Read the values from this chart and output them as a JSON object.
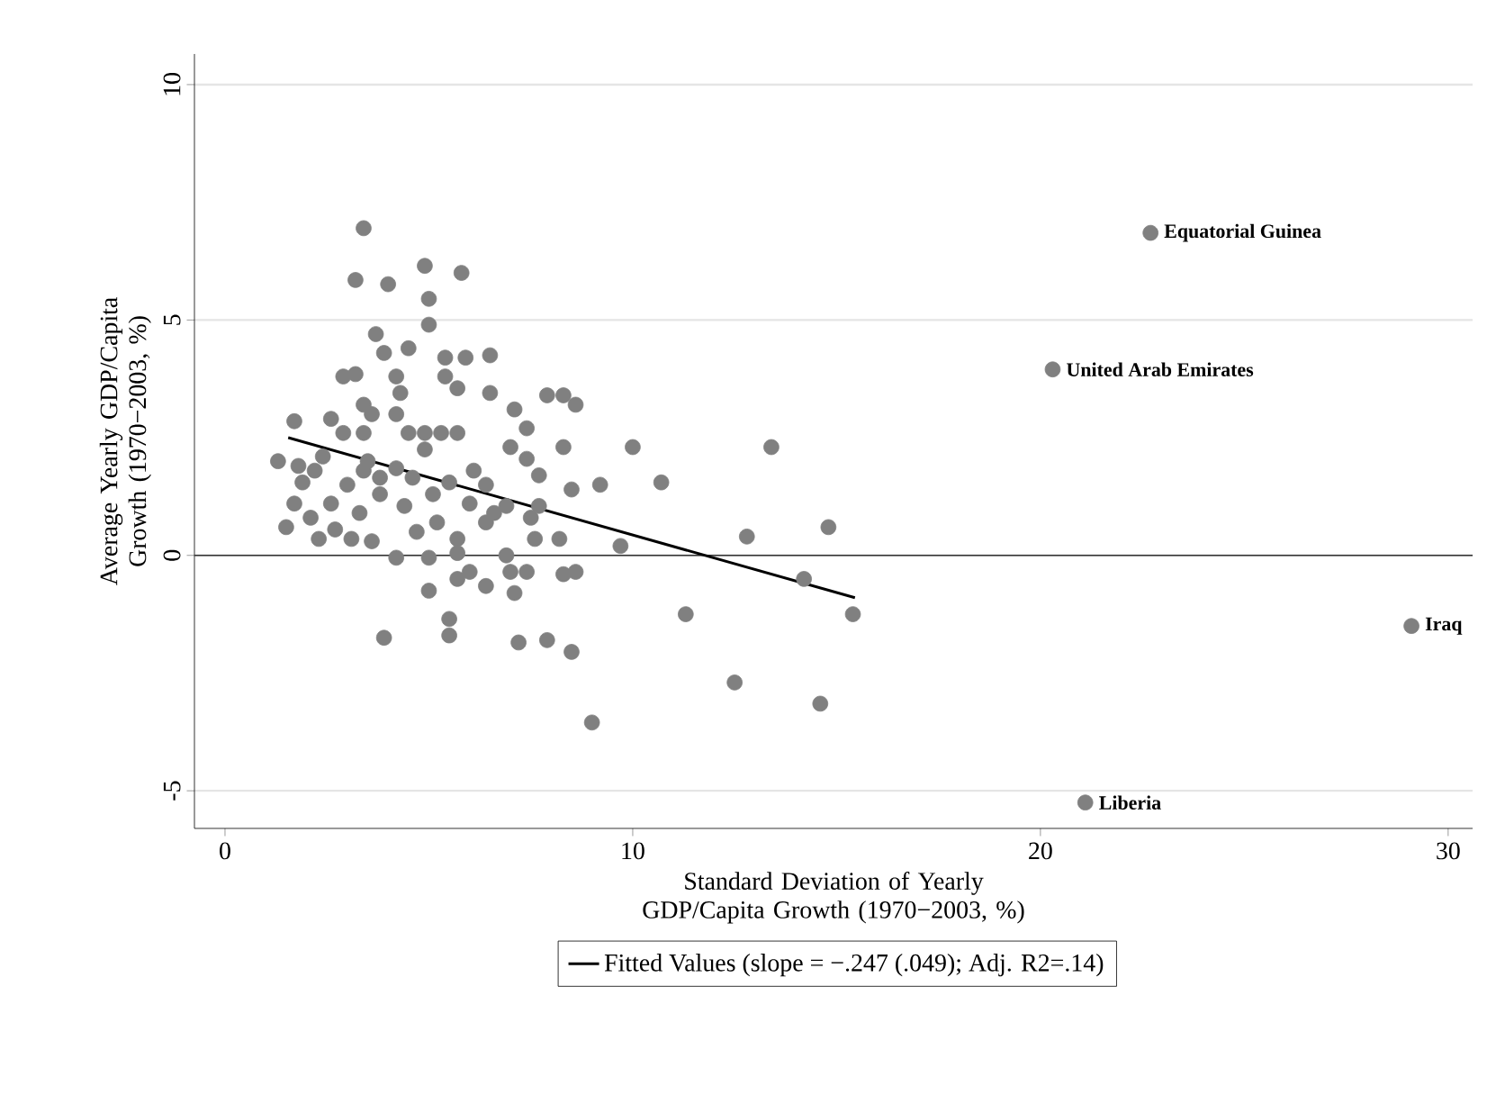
{
  "chart_data": {
    "type": "scatter",
    "xlabel": "Standard Deviation of Yearly GDP/Capita Growth (1970−2003, %)",
    "ylabel": "Average Yearly GDP/Capita Growth (1970−2003, %)",
    "xlim": [
      -0.75,
      30.6
    ],
    "ylim": [
      -5.8,
      10.65
    ],
    "xticks": [
      0,
      10,
      20,
      30
    ],
    "yticks": [
      -5,
      0,
      5,
      10
    ],
    "grid": "y",
    "legend": "bottom",
    "marker": "circle",
    "ref_lines": [
      {
        "axis": "y",
        "value": 0,
        "color": "#333333"
      }
    ],
    "annotations": [
      {
        "text": "Equatorial Guinea",
        "x": 22.7,
        "y": 6.85
      },
      {
        "text": "United Arab Emirates",
        "x": 20.3,
        "y": 3.95
      },
      {
        "text": "Iraq",
        "x": 29.1,
        "y": -1.5
      },
      {
        "text": "Liberia",
        "x": 21.1,
        "y": -5.25
      }
    ],
    "series": [
      {
        "color": "#808080",
        "x": [
          3.4,
          4.9,
          3.2,
          4.0,
          5.8,
          5.0,
          5.0,
          3.7,
          4.5,
          3.9,
          6.5,
          5.4,
          5.9,
          4.2,
          2.9,
          3.2,
          5.4,
          5.7,
          6.5,
          4.3,
          4.2,
          3.4,
          7.1,
          7.4,
          7.9,
          8.3,
          8.6,
          3.4,
          1.7,
          2.6,
          4.9,
          5.3,
          5.7,
          7.0,
          7.4,
          8.3,
          10.0,
          13.4,
          4.5,
          2.4,
          3.5,
          4.9,
          6.1,
          9.2,
          10.7,
          7.7,
          8.5,
          2.2,
          1.8,
          1.3,
          3.3,
          4.4,
          5.2,
          6.0,
          6.9,
          7.7,
          2.6,
          3.0,
          3.8,
          4.6,
          5.5,
          1.9,
          2.1,
          2.7,
          3.6,
          4.7,
          5.7,
          6.4,
          7.6,
          8.2,
          9.7,
          12.8,
          14.8,
          14.2,
          15.4,
          11.3,
          12.5,
          14.6,
          9.0,
          5.0,
          5.7,
          6.0,
          6.4,
          7.0,
          7.4,
          7.1,
          8.3,
          8.6,
          3.9,
          5.5,
          5.5,
          7.2,
          7.9,
          8.5,
          5.0,
          4.2,
          3.1,
          6.9,
          5.7,
          1.7,
          1.5,
          2.3,
          3.4,
          3.8,
          4.2,
          5.1,
          6.4,
          2.9,
          3.6,
          6.6,
          7.5,
          22.7,
          20.3,
          29.1,
          21.1
        ],
        "values": [
          6.95,
          6.15,
          5.85,
          5.76,
          6.0,
          5.45,
          4.9,
          4.7,
          4.4,
          4.3,
          4.25,
          4.2,
          4.2,
          3.8,
          3.8,
          3.85,
          3.8,
          3.55,
          3.45,
          3.45,
          3.0,
          3.2,
          3.1,
          2.7,
          3.4,
          3.4,
          3.2,
          2.6,
          2.85,
          2.9,
          2.6,
          2.6,
          2.6,
          2.3,
          2.05,
          2.3,
          2.3,
          2.3,
          2.6,
          2.1,
          2.0,
          2.25,
          1.8,
          1.5,
          1.55,
          1.7,
          1.4,
          1.8,
          1.9,
          2.0,
          0.9,
          1.05,
          0.7,
          1.1,
          1.05,
          1.05,
          1.1,
          1.5,
          1.65,
          1.65,
          1.55,
          1.55,
          0.8,
          0.55,
          0.3,
          0.5,
          0.35,
          0.7,
          0.35,
          0.35,
          0.2,
          0.4,
          0.6,
          -0.5,
          -1.25,
          -1.25,
          -2.7,
          -3.15,
          -3.55,
          -0.75,
          -0.5,
          -0.35,
          -0.65,
          -0.35,
          -0.35,
          -0.8,
          -0.4,
          -0.35,
          -1.75,
          -1.35,
          -1.7,
          -1.85,
          -1.8,
          -2.05,
          -0.05,
          -0.05,
          0.35,
          0.0,
          0.05,
          1.1,
          0.6,
          0.35,
          1.8,
          1.3,
          1.85,
          1.3,
          1.5,
          2.6,
          3.0,
          0.9,
          0.8,
          6.85,
          3.95,
          -1.5,
          -5.25
        ]
      },
      {
        "type": "line",
        "marker": "none",
        "name": "Fitted Values (slope = −.247 (.049); Adj. R2=.14)",
        "color": "#000000",
        "x": [
          1.55,
          15.45
        ],
        "values": [
          2.5,
          -0.9
        ]
      }
    ]
  }
}
